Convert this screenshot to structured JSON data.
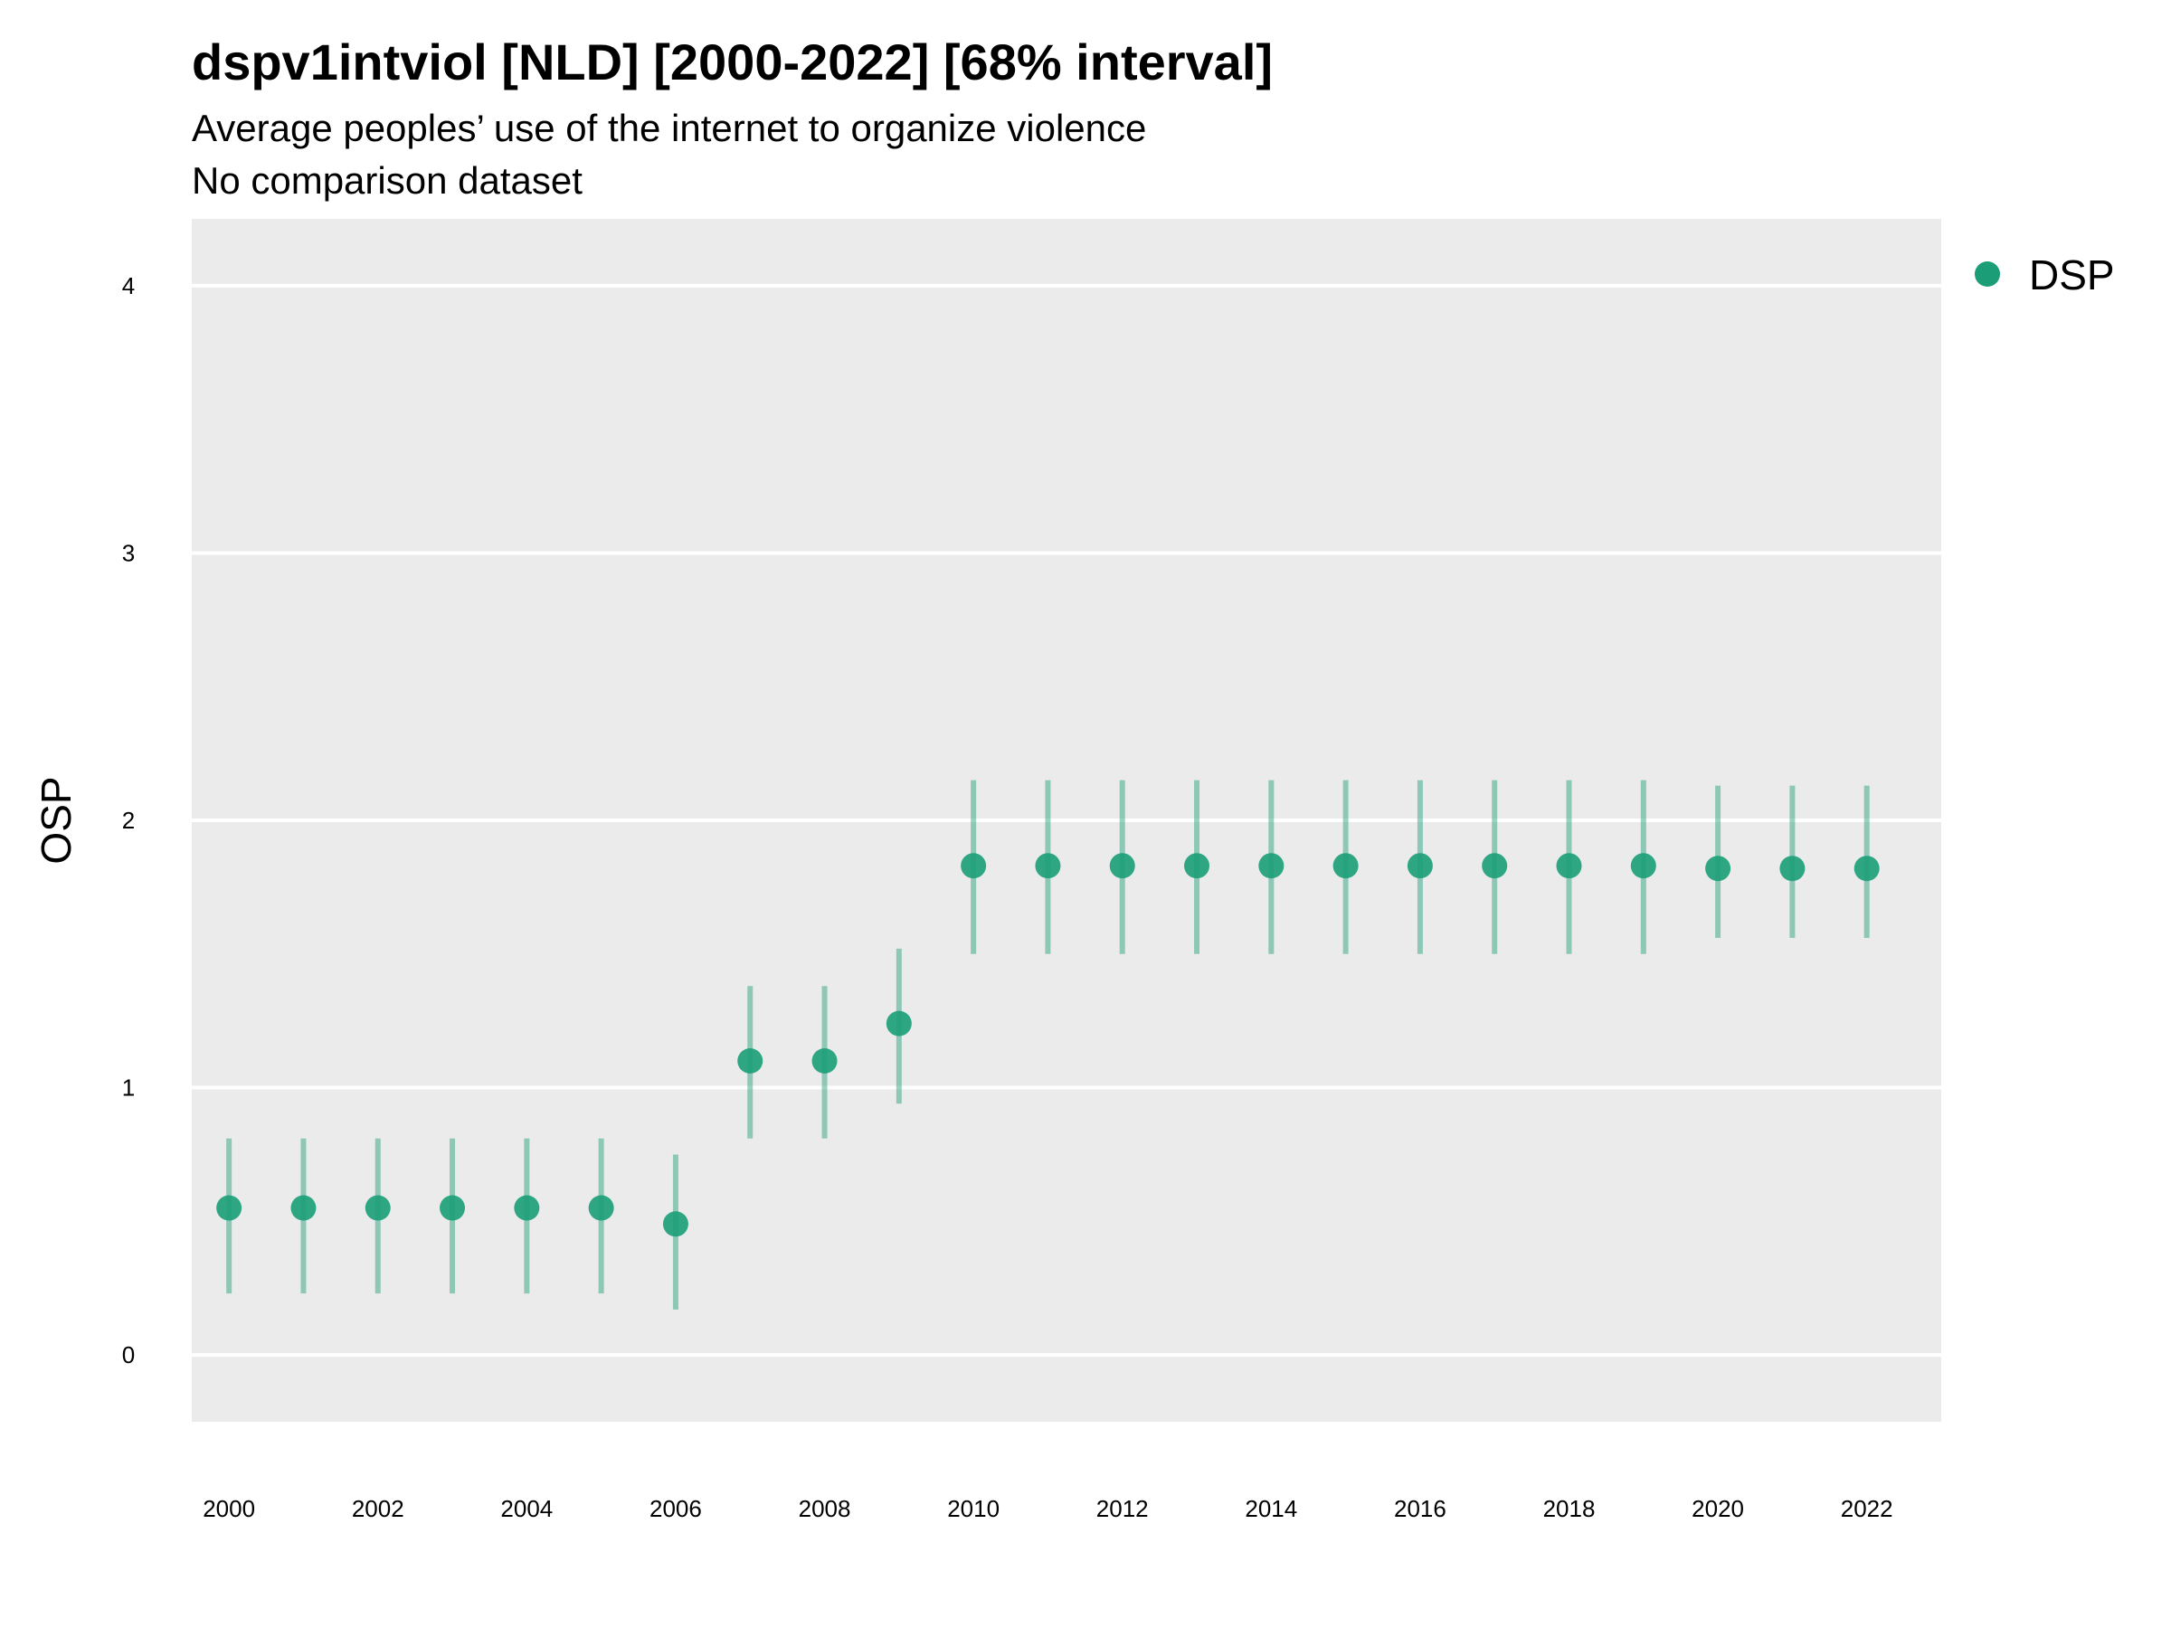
{
  "header": {
    "title": "dspv1intviol [NLD] [2000-2022] [68% interval]",
    "subtitle": "Average peoples’ use of the internet to organize violence",
    "subtitle2": "No comparison dataset"
  },
  "colors": {
    "panel_bg": "#ebebeb",
    "grid": "#ffffff",
    "point": "#1b9e77",
    "interval": "#1b9e77"
  },
  "chart_data": {
    "type": "scatter",
    "ylabel": "OSP",
    "xlabel": "",
    "ylim": [
      -0.25,
      4.25
    ],
    "yticks": [
      0,
      1,
      2,
      3,
      4
    ],
    "xlim": [
      -0.5,
      23.0
    ],
    "xticks": [
      "2000",
      "2002",
      "2004",
      "2006",
      "2008",
      "2010",
      "2012",
      "2014",
      "2016",
      "2018",
      "2020",
      "2022"
    ],
    "grid": true,
    "legend_position": "top-right",
    "series": [
      {
        "name": "DSP",
        "x": [
          "2000",
          "2001",
          "2002",
          "2003",
          "2004",
          "2005",
          "2006",
          "2007",
          "2008",
          "2009",
          "2010",
          "2011",
          "2012",
          "2013",
          "2014",
          "2015",
          "2016",
          "2017",
          "2018",
          "2019",
          "2020",
          "2021",
          "2022"
        ],
        "y": [
          0.55,
          0.55,
          0.55,
          0.55,
          0.55,
          0.55,
          0.49,
          1.1,
          1.1,
          1.24,
          1.83,
          1.83,
          1.83,
          1.83,
          1.83,
          1.83,
          1.83,
          1.83,
          1.83,
          1.83,
          1.82,
          1.82,
          1.82
        ],
        "lower": [
          0.23,
          0.23,
          0.23,
          0.23,
          0.23,
          0.23,
          0.17,
          0.81,
          0.81,
          0.94,
          1.5,
          1.5,
          1.5,
          1.5,
          1.5,
          1.5,
          1.5,
          1.5,
          1.5,
          1.5,
          1.56,
          1.56,
          1.56
        ],
        "upper": [
          0.81,
          0.81,
          0.81,
          0.81,
          0.81,
          0.81,
          0.75,
          1.38,
          1.38,
          1.52,
          2.15,
          2.15,
          2.15,
          2.15,
          2.15,
          2.15,
          2.15,
          2.15,
          2.15,
          2.15,
          2.13,
          2.13,
          2.13
        ]
      }
    ]
  }
}
